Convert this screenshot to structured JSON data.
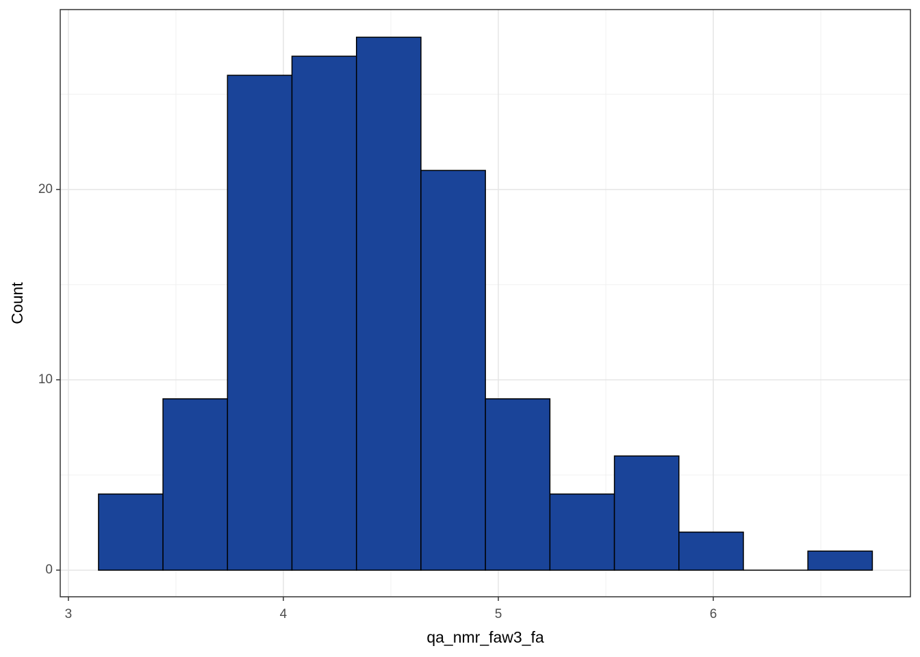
{
  "chart_data": {
    "type": "histogram",
    "x_label": "qa_nmr_faw3_fa",
    "y_label": "Count",
    "bins": [
      3.14,
      3.44,
      3.74,
      4.04,
      4.34,
      4.64,
      4.94,
      5.24,
      5.54,
      5.84,
      6.14,
      6.44,
      6.74
    ],
    "values": [
      4,
      9,
      26,
      27,
      28,
      21,
      9,
      4,
      6,
      2,
      0,
      1
    ],
    "color": "#1a4499",
    "edge_color": "#000000",
    "xlim": [
      2.962,
      6.917
    ],
    "ylim": [
      -1.4,
      29.45
    ],
    "xticks": [
      3,
      4,
      5,
      6
    ],
    "yticks": [
      0,
      10,
      20
    ],
    "grid": true
  }
}
